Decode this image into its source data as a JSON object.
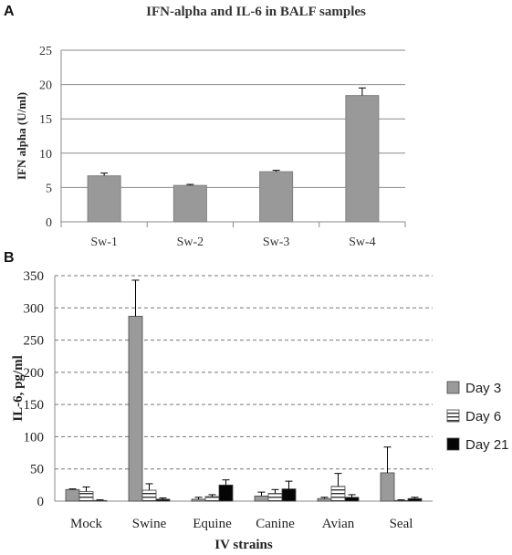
{
  "panels": {
    "a_label": "A",
    "b_label": "B"
  },
  "chart_data": [
    {
      "type": "bar",
      "title": "IFN-alpha and IL-6 in BALF samples",
      "xlabel": "",
      "ylabel": "IFN alpha (U/ml)",
      "categories": [
        "Sw-1",
        "Sw-2",
        "Sw-3",
        "Sw-4"
      ],
      "values": [
        6.7,
        5.3,
        7.3,
        18.4
      ],
      "errors": [
        0.4,
        0.15,
        0.2,
        1.1
      ],
      "ylim": [
        0,
        25
      ],
      "yticks": [
        0,
        5,
        10,
        15,
        20,
        25
      ],
      "grid": true,
      "color": "#999999"
    },
    {
      "type": "bar",
      "title": "",
      "xlabel": "IV strains",
      "ylabel": "IL-6, pg/ml",
      "categories": [
        "Mock",
        "Swine",
        "Equine",
        "Canine",
        "Avian",
        "Seal"
      ],
      "series": [
        {
          "name": "Day 3",
          "pattern": "solid-gray",
          "values": [
            18,
            287,
            3,
            8,
            4,
            44
          ],
          "errors": [
            1,
            56,
            3,
            6,
            2,
            40
          ]
        },
        {
          "name": "Day 6",
          "pattern": "stripes",
          "values": [
            15,
            17,
            7,
            12,
            23,
            1
          ],
          "errors": [
            7,
            10,
            3,
            6,
            20,
            1
          ]
        },
        {
          "name": "Day 21",
          "pattern": "solid-black",
          "values": [
            1,
            3,
            25,
            19,
            6,
            4
          ],
          "errors": [
            1,
            2,
            8,
            12,
            4,
            2
          ]
        }
      ],
      "ylim": [
        0,
        350
      ],
      "yticks": [
        0,
        50,
        100,
        150,
        200,
        250,
        300,
        350
      ],
      "grid": true,
      "legend": "right"
    }
  ]
}
